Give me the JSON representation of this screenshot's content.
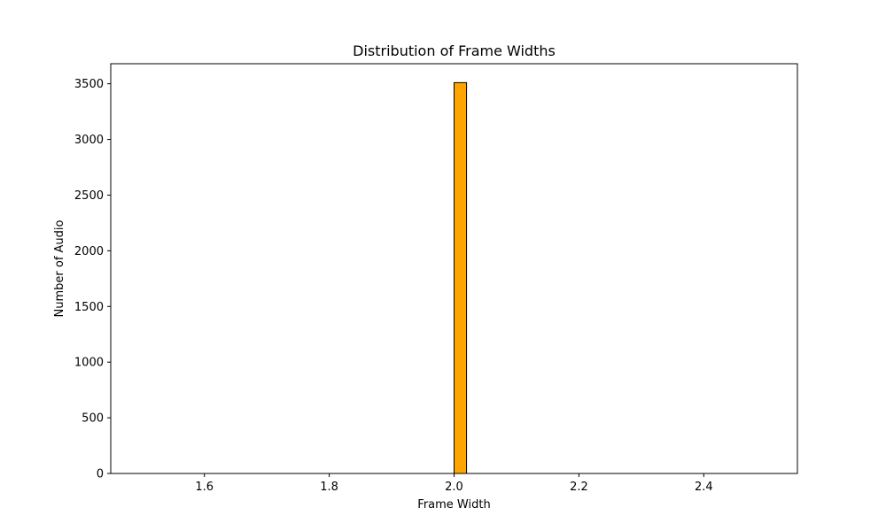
{
  "chart_data": {
    "type": "bar",
    "title": "Distribution of Frame Widths",
    "xlabel": "Frame Width",
    "ylabel": "Number of Audio",
    "xlim": [
      1.45,
      2.55
    ],
    "ylim": [
      0,
      3680
    ],
    "x_ticks": [
      "1.6",
      "1.8",
      "2.0",
      "2.2",
      "2.4"
    ],
    "y_ticks": [
      "0",
      "500",
      "1000",
      "1500",
      "2000",
      "2500",
      "3000",
      "3500"
    ],
    "bins": {
      "start": 1.5,
      "end": 2.5,
      "count": 50
    },
    "bars": [
      {
        "x0": 1.98,
        "x1": 2.0,
        "value": 0
      },
      {
        "x0": 2.0,
        "x1": 2.02,
        "value": 3510
      }
    ],
    "bar_color": "#ffa500",
    "edge_color": "#000000",
    "grid": false,
    "legend": "none"
  }
}
